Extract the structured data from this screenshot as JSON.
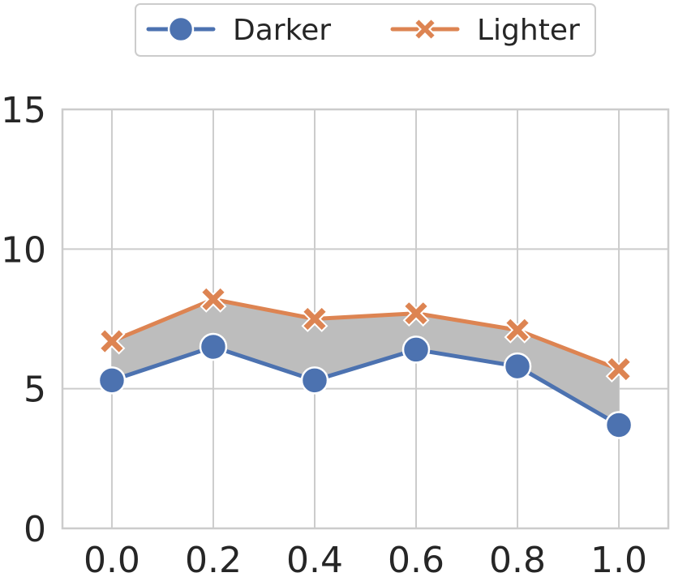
{
  "chart_data": {
    "type": "line",
    "x": [
      0.0,
      0.2,
      0.4,
      0.6,
      0.8,
      1.0
    ],
    "x_tick_labels": [
      "0.0",
      "0.2",
      "0.4",
      "0.6",
      "0.8",
      "1.0"
    ],
    "y_ticks": [
      0,
      5,
      10,
      15
    ],
    "y_tick_labels": [
      "0",
      "5",
      "10",
      "15"
    ],
    "xlim": [
      -0.0975,
      1.0975
    ],
    "ylim": [
      0,
      15
    ],
    "grid": true,
    "legend_position": "top-center",
    "fill_between": {
      "lower": "Darker",
      "upper": "Lighter",
      "color": "#bdbdbd"
    },
    "series": [
      {
        "name": "Darker",
        "marker": "circle",
        "color": "#4c72b0",
        "values": [
          5.3,
          6.5,
          5.3,
          6.4,
          5.8,
          3.7
        ]
      },
      {
        "name": "Lighter",
        "marker": "x",
        "color": "#dd8452",
        "values": [
          6.7,
          8.2,
          7.5,
          7.7,
          7.1,
          5.7
        ]
      }
    ]
  }
}
